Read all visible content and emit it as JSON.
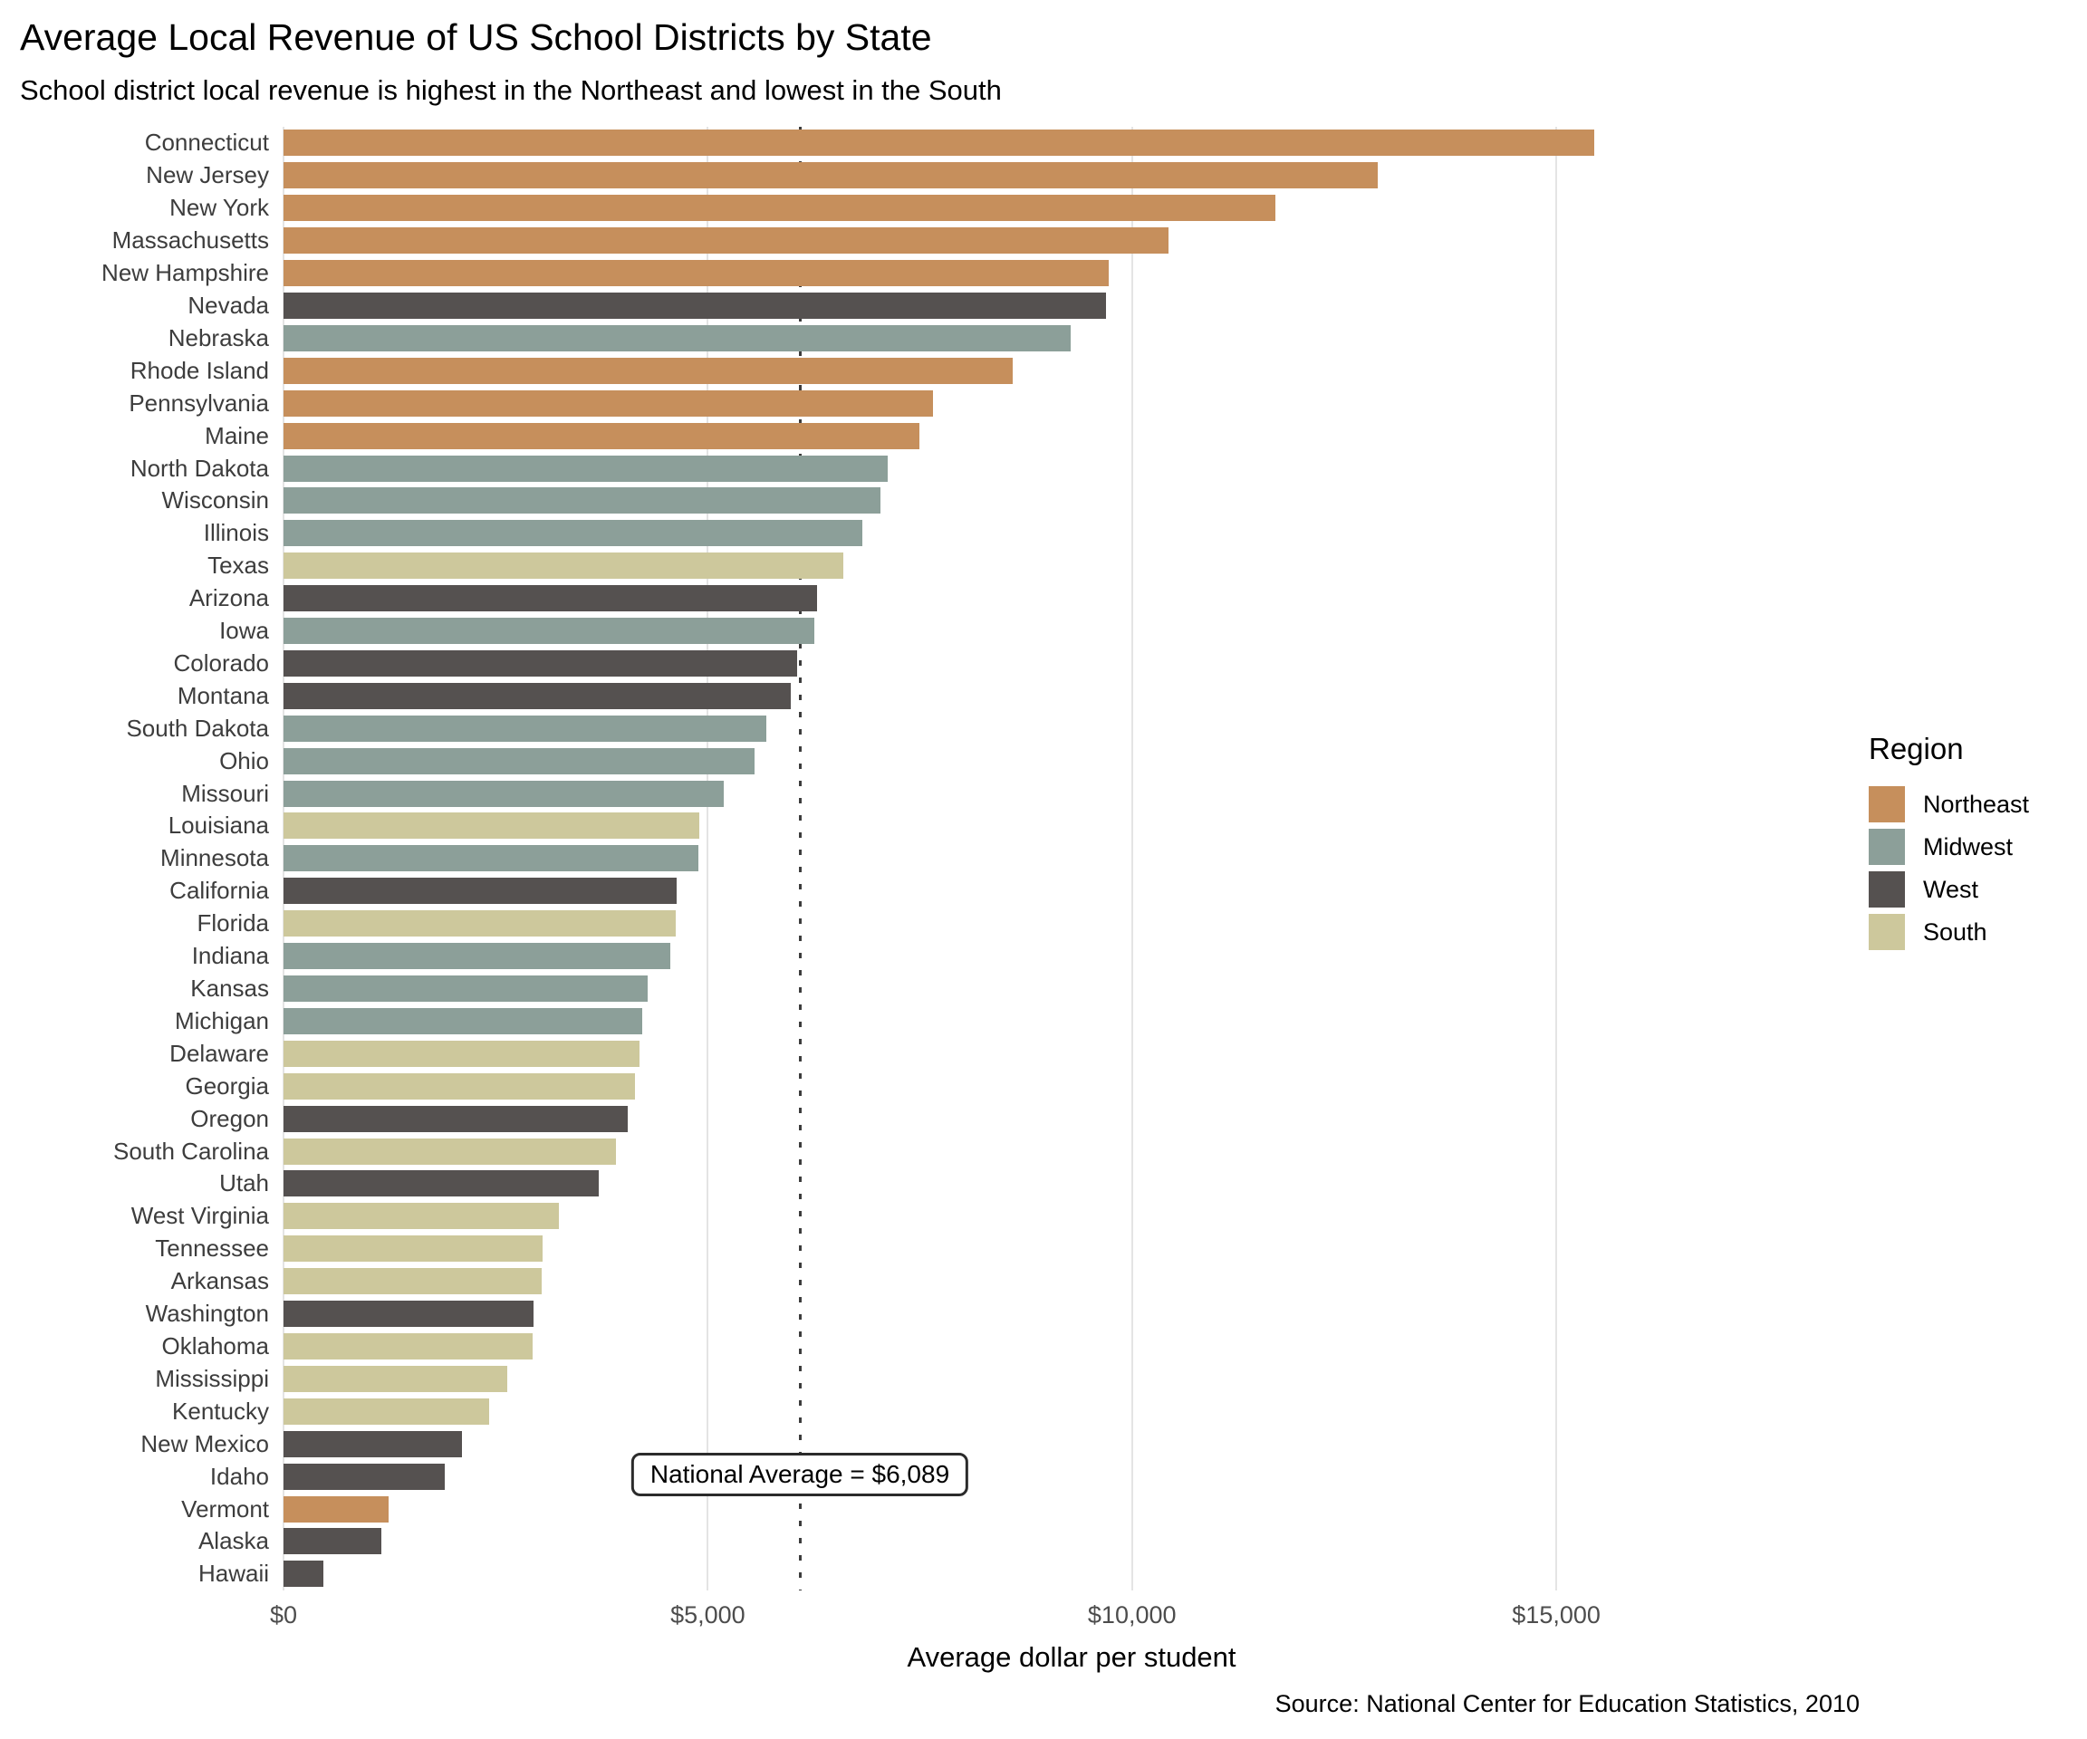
{
  "title": "Average Local Revenue of US School Districts by State",
  "subtitle": "School district local revenue is highest in the Northeast and lowest in the South",
  "caption": "Source: National Center for Education Statistics, 2010",
  "annotation": {
    "text": "National Average = $6,089",
    "value": 6089
  },
  "legend": {
    "title": "Region",
    "items": [
      {
        "label": "Northeast",
        "color": "#C68F5C"
      },
      {
        "label": "Midwest",
        "color": "#8C9F99"
      },
      {
        "label": "West",
        "color": "#555150"
      },
      {
        "label": "South",
        "color": "#CDC89C"
      }
    ]
  },
  "colors": {
    "Northeast": "#C68F5C",
    "Midwest": "#8C9F99",
    "West": "#555150",
    "South": "#CDC89C",
    "grid": "#e4e4e4",
    "dashed_line": "#3c3c3c"
  },
  "chart_data": {
    "type": "bar",
    "orientation": "horizontal",
    "title": "Average Local Revenue of US School Districts by State",
    "subtitle": "School district local revenue is highest in the Northeast and lowest in the South",
    "xlabel": "Average dollar per student",
    "ylabel": "",
    "xlim": [
      0,
      18575
    ],
    "grid": "vertical-major",
    "legend_position": "right",
    "reference_line": {
      "label": "National Average = $6,089",
      "value": 6089,
      "style": "dotted"
    },
    "ticks": [
      {
        "value": 0,
        "label": "$0"
      },
      {
        "value": 5000,
        "label": "$5,000"
      },
      {
        "value": 10000,
        "label": "$10,000"
      },
      {
        "value": 15000,
        "label": "$15,000"
      }
    ],
    "series_key": "region",
    "states": [
      {
        "name": "Connecticut",
        "region": "Northeast",
        "value": 15450
      },
      {
        "name": "New Jersey",
        "region": "Northeast",
        "value": 12900
      },
      {
        "name": "New York",
        "region": "Northeast",
        "value": 11690
      },
      {
        "name": "Massachusetts",
        "region": "Northeast",
        "value": 10430
      },
      {
        "name": "New Hampshire",
        "region": "Northeast",
        "value": 9720
      },
      {
        "name": "Nevada",
        "region": "West",
        "value": 9690
      },
      {
        "name": "Nebraska",
        "region": "Midwest",
        "value": 9280
      },
      {
        "name": "Rhode Island",
        "region": "Northeast",
        "value": 8590
      },
      {
        "name": "Pennsylvania",
        "region": "Northeast",
        "value": 7650
      },
      {
        "name": "Maine",
        "region": "Northeast",
        "value": 7490
      },
      {
        "name": "North Dakota",
        "region": "Midwest",
        "value": 7120
      },
      {
        "name": "Wisconsin",
        "region": "Midwest",
        "value": 7040
      },
      {
        "name": "Illinois",
        "region": "Midwest",
        "value": 6820
      },
      {
        "name": "Texas",
        "region": "South",
        "value": 6600
      },
      {
        "name": "Arizona",
        "region": "West",
        "value": 6290
      },
      {
        "name": "Iowa",
        "region": "Midwest",
        "value": 6260
      },
      {
        "name": "Colorado",
        "region": "West",
        "value": 6050
      },
      {
        "name": "Montana",
        "region": "West",
        "value": 5980
      },
      {
        "name": "South Dakota",
        "region": "Midwest",
        "value": 5690
      },
      {
        "name": "Ohio",
        "region": "Midwest",
        "value": 5550
      },
      {
        "name": "Missouri",
        "region": "Midwest",
        "value": 5190
      },
      {
        "name": "Louisiana",
        "region": "South",
        "value": 4900
      },
      {
        "name": "Minnesota",
        "region": "Midwest",
        "value": 4890
      },
      {
        "name": "California",
        "region": "West",
        "value": 4630
      },
      {
        "name": "Florida",
        "region": "South",
        "value": 4620
      },
      {
        "name": "Indiana",
        "region": "Midwest",
        "value": 4560
      },
      {
        "name": "Kansas",
        "region": "Midwest",
        "value": 4290
      },
      {
        "name": "Michigan",
        "region": "Midwest",
        "value": 4230
      },
      {
        "name": "Delaware",
        "region": "South",
        "value": 4200
      },
      {
        "name": "Georgia",
        "region": "South",
        "value": 4140
      },
      {
        "name": "Oregon",
        "region": "West",
        "value": 4060
      },
      {
        "name": "South Carolina",
        "region": "South",
        "value": 3920
      },
      {
        "name": "Utah",
        "region": "West",
        "value": 3720
      },
      {
        "name": "West Virginia",
        "region": "South",
        "value": 3240
      },
      {
        "name": "Tennessee",
        "region": "South",
        "value": 3050
      },
      {
        "name": "Arkansas",
        "region": "South",
        "value": 3040
      },
      {
        "name": "Washington",
        "region": "West",
        "value": 2950
      },
      {
        "name": "Oklahoma",
        "region": "South",
        "value": 2940
      },
      {
        "name": "Mississippi",
        "region": "South",
        "value": 2640
      },
      {
        "name": "Kentucky",
        "region": "South",
        "value": 2420
      },
      {
        "name": "New Mexico",
        "region": "West",
        "value": 2100
      },
      {
        "name": "Idaho",
        "region": "West",
        "value": 1900
      },
      {
        "name": "Vermont",
        "region": "Northeast",
        "value": 1240
      },
      {
        "name": "Alaska",
        "region": "West",
        "value": 1150
      },
      {
        "name": "Hawaii",
        "region": "West",
        "value": 470
      }
    ]
  }
}
